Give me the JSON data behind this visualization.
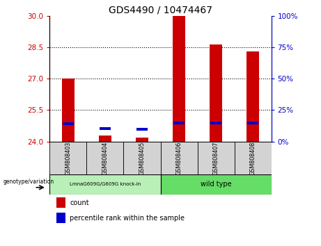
{
  "title": "GDS4490 / 10474467",
  "samples": [
    "GSM808403",
    "GSM808404",
    "GSM808405",
    "GSM808406",
    "GSM808407",
    "GSM808408"
  ],
  "count_values": [
    27.0,
    24.3,
    24.2,
    30.0,
    28.65,
    28.3
  ],
  "percentile_values": [
    24.85,
    24.62,
    24.58,
    24.88,
    24.88,
    24.88
  ],
  "ylim_left": [
    24,
    30
  ],
  "yticks_left": [
    24,
    25.5,
    27,
    28.5,
    30
  ],
  "yticks_right": [
    0,
    25,
    50,
    75,
    100
  ],
  "ylim_right": [
    0,
    100
  ],
  "count_color": "#CC0000",
  "percentile_color": "#0000CC",
  "bar_width": 0.35,
  "sample_bg_color": "#d3d3d3",
  "group1_bg_color": "#b8f0b8",
  "group2_bg_color": "#66dd66",
  "legend_count": "count",
  "legend_percentile": "percentile rank within the sample",
  "geno_label": "genotype/variation",
  "group1_label": "LmnaG609G/G609G knock-in",
  "group2_label": "wild type"
}
